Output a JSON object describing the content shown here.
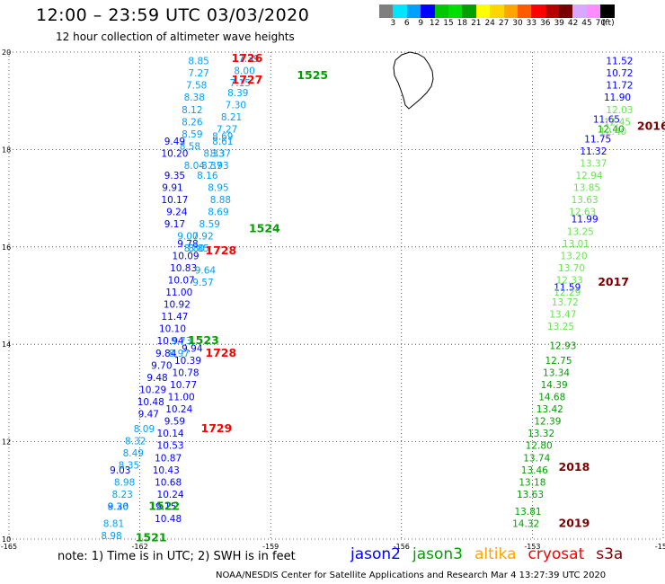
{
  "header": {
    "title": "12:00 – 23:59 UTC 03/03/2020",
    "subtitle": "12 hour collection of altimeter wave heights"
  },
  "colorbar": {
    "colors": [
      "#7f7f7f",
      "#00e5ff",
      "#00a0ff",
      "#0000ff",
      "#00c800",
      "#00e000",
      "#00a000",
      "#ffff00",
      "#ffd700",
      "#ffa500",
      "#ff5a00",
      "#ff0000",
      "#b40000",
      "#7a0000",
      "#d8a8ff",
      "#ff8cff",
      "#000000"
    ],
    "labels": [
      "3",
      "6",
      "9",
      "12",
      "15",
      "18",
      "21",
      "24",
      "27",
      "30",
      "33",
      "36",
      "39",
      "42",
      "45",
      "70",
      "(ft)"
    ]
  },
  "map": {
    "lon_ticks": [
      "-165",
      "-162",
      "-159",
      "-156",
      "-153",
      "-150"
    ],
    "lat_ticks": [
      "10",
      "12",
      "14",
      "16",
      "18",
      "20"
    ],
    "lon_range": [
      -165,
      -150
    ],
    "lat_range": [
      10,
      20
    ],
    "land": "big-island-hawaii-outline"
  },
  "legend": {
    "note": "note:  1) Time is in UTC;  2) SWH is in feet",
    "items": [
      {
        "name": "jason2",
        "color": "#0000ff"
      },
      {
        "name": "jason3",
        "color": "#00a000"
      },
      {
        "name": "altika",
        "color": "#ffa500"
      },
      {
        "name": "cryosat",
        "color": "#ff0000"
      },
      {
        "name": "s3a",
        "color": "#7a0000"
      }
    ]
  },
  "footer": "NOAA/NESDIS Center for Satellite Applications and Research    Mar  4 13:27:39 UTC 2020",
  "chart_data": {
    "type": "scatter",
    "ticks_x": [
      "-165",
      "-162",
      "-159",
      "-156",
      "-153",
      "-150"
    ],
    "ticks_y": [
      "10",
      "12",
      "14",
      "16",
      "18",
      "20"
    ],
    "xlim": [
      -165,
      -150
    ],
    "ylim": [
      10,
      20
    ],
    "time_labels": [
      {
        "text": "1726",
        "sat": "cryosat",
        "lon": -159.9,
        "lat": 19.8
      },
      {
        "text": "1727",
        "sat": "cryosat",
        "lon": -159.9,
        "lat": 19.35
      },
      {
        "text": "1525",
        "sat": "jason3",
        "lon": -158.4,
        "lat": 19.45
      },
      {
        "text": "1524",
        "sat": "jason3",
        "lon": -159.5,
        "lat": 16.3
      },
      {
        "text": "1728",
        "sat": "cryosat",
        "lon": -160.5,
        "lat": 15.85
      },
      {
        "text": "1523",
        "sat": "jason3",
        "lon": -160.9,
        "lat": 14.0
      },
      {
        "text": "1728",
        "sat": "cryosat",
        "lon": -160.5,
        "lat": 13.75
      },
      {
        "text": "1729",
        "sat": "cryosat",
        "lon": -160.6,
        "lat": 12.2
      },
      {
        "text": "1522",
        "sat": "jason3",
        "lon": -161.8,
        "lat": 10.6
      },
      {
        "text": "1521",
        "sat": "jason3",
        "lon": -162.1,
        "lat": 9.95
      },
      {
        "text": "2016",
        "sat": "s3a",
        "lon": -150.6,
        "lat": 18.4
      },
      {
        "text": "2017",
        "sat": "s3a",
        "lon": -151.5,
        "lat": 15.2
      },
      {
        "text": "2018",
        "sat": "s3a",
        "lon": -152.4,
        "lat": 11.4
      },
      {
        "text": "2019",
        "sat": "s3a",
        "lon": -152.4,
        "lat": 10.25
      }
    ],
    "series": [
      {
        "name": "jason2",
        "color": "#0000ff",
        "points": [
          [
            -151.0,
            19.75,
            "11.52"
          ],
          [
            -151.0,
            19.5,
            "10.72"
          ],
          [
            -151.0,
            19.25,
            "11.72"
          ],
          [
            -151.05,
            19.0,
            "11.90"
          ],
          [
            -151.3,
            18.55,
            "11.65"
          ],
          [
            -151.5,
            18.15,
            "11.75"
          ],
          [
            -151.6,
            17.9,
            "11.32"
          ],
          [
            -151.8,
            16.5,
            "11.99"
          ],
          [
            -152.2,
            15.1,
            "11.59"
          ],
          [
            -161.2,
            18.1,
            "9.49"
          ],
          [
            -161.2,
            17.85,
            "10.20"
          ],
          [
            -161.2,
            17.4,
            "9.35"
          ],
          [
            -161.25,
            17.15,
            "9.91"
          ],
          [
            -161.2,
            16.9,
            "10.17"
          ],
          [
            -161.15,
            16.65,
            "9.24"
          ],
          [
            -161.2,
            16.4,
            "9.17"
          ],
          [
            -160.9,
            16.0,
            "9.78"
          ],
          [
            -160.95,
            15.75,
            "10.09"
          ],
          [
            -161.0,
            15.5,
            "10.83"
          ],
          [
            -161.05,
            15.25,
            "10.07"
          ],
          [
            -161.1,
            15.0,
            "11.00"
          ],
          [
            -161.15,
            14.75,
            "10.92"
          ],
          [
            -161.2,
            14.5,
            "11.47"
          ],
          [
            -161.25,
            14.25,
            "10.10"
          ],
          [
            -161.3,
            14.0,
            "10.94"
          ],
          [
            -161.4,
            13.75,
            "9.84"
          ],
          [
            -161.5,
            13.5,
            "9.70"
          ],
          [
            -161.6,
            13.25,
            "9.48"
          ],
          [
            -161.7,
            13.0,
            "10.29"
          ],
          [
            -161.75,
            12.75,
            "10.48"
          ],
          [
            -161.8,
            12.5,
            "9.47"
          ],
          [
            -160.8,
            13.85,
            "9.94"
          ],
          [
            -160.9,
            13.6,
            "10.39"
          ],
          [
            -160.95,
            13.35,
            "10.78"
          ],
          [
            -161.0,
            13.1,
            "10.77"
          ],
          [
            -161.05,
            12.85,
            "11.00"
          ],
          [
            -161.1,
            12.6,
            "10.24"
          ],
          [
            -161.2,
            12.35,
            "9.59"
          ],
          [
            -161.3,
            12.1,
            "10.14"
          ],
          [
            -161.3,
            11.85,
            "10.53"
          ],
          [
            -161.35,
            11.6,
            "10.87"
          ],
          [
            -161.4,
            11.35,
            "10.43"
          ],
          [
            -161.35,
            11.1,
            "10.68"
          ],
          [
            -161.3,
            10.85,
            "10.24"
          ],
          [
            -161.4,
            10.6,
            "9.15"
          ],
          [
            -161.35,
            10.35,
            "10.48"
          ],
          [
            -162.45,
            11.35,
            "9.03"
          ],
          [
            -162.5,
            10.6,
            "9.30"
          ]
        ]
      },
      {
        "name": "jason2-light",
        "color": "#00a0ff",
        "points": [
          [
            -160.65,
            19.75,
            "8.85"
          ],
          [
            -160.65,
            19.5,
            "7.27"
          ],
          [
            -160.7,
            19.25,
            "7.58"
          ],
          [
            -160.75,
            19.0,
            "8.38"
          ],
          [
            -160.8,
            18.75,
            "8.12"
          ],
          [
            -160.8,
            18.5,
            "8.26"
          ],
          [
            -160.8,
            18.25,
            "8.59"
          ],
          [
            -160.85,
            18.0,
            "8.58"
          ],
          [
            -160.75,
            17.6,
            "8.04"
          ],
          [
            -160.45,
            17.4,
            "8.16"
          ],
          [
            -160.2,
            17.15,
            "8.95"
          ],
          [
            -160.15,
            16.9,
            "8.88"
          ],
          [
            -160.2,
            16.65,
            "8.69"
          ],
          [
            -160.4,
            16.4,
            "8.59"
          ],
          [
            -160.55,
            16.15,
            "7.92"
          ],
          [
            -160.75,
            15.9,
            "8.80"
          ],
          [
            -159.5,
            19.8,
            "7.39"
          ],
          [
            -159.6,
            19.55,
            "8.00"
          ],
          [
            -159.7,
            19.3,
            "7.15"
          ],
          [
            -159.75,
            19.1,
            "8.39"
          ],
          [
            -159.8,
            18.85,
            "7.30"
          ],
          [
            -159.9,
            18.6,
            "8.21"
          ],
          [
            -160.0,
            18.35,
            "7.27"
          ],
          [
            -160.1,
            18.1,
            "8.61"
          ],
          [
            -160.15,
            17.85,
            "8.37"
          ],
          [
            -160.2,
            17.6,
            "7.93"
          ],
          [
            -160.1,
            18.2,
            "8.69"
          ],
          [
            -160.3,
            17.85,
            "8.33"
          ],
          [
            -160.35,
            17.6,
            "8.37"
          ],
          [
            -160.9,
            16.15,
            "9.00"
          ],
          [
            -160.65,
            15.9,
            "8.85"
          ],
          [
            -160.5,
            15.45,
            "9.64"
          ],
          [
            -160.55,
            15.2,
            "9.57"
          ],
          [
            -161.05,
            14.0,
            "9.73"
          ],
          [
            -161.1,
            13.75,
            "8.97"
          ],
          [
            -161.9,
            12.2,
            "8.09"
          ],
          [
            -162.1,
            11.95,
            "8.32"
          ],
          [
            -162.15,
            11.7,
            "8.49"
          ],
          [
            -162.25,
            11.45,
            "8.35"
          ],
          [
            -162.35,
            11.1,
            "8.98"
          ],
          [
            -162.4,
            10.85,
            "8.23"
          ],
          [
            -162.5,
            10.6,
            "8.26"
          ],
          [
            -162.6,
            10.25,
            "8.81"
          ],
          [
            -162.65,
            10.0,
            "8.98"
          ]
        ]
      },
      {
        "name": "jason3",
        "color": "#00a000",
        "points": [
          [
            -151.2,
            18.35,
            "12.40"
          ],
          [
            -152.3,
            13.9,
            "12.93"
          ],
          [
            -152.4,
            13.6,
            "12.75"
          ],
          [
            -152.45,
            13.35,
            "13.34"
          ],
          [
            -152.5,
            13.1,
            "14.39"
          ],
          [
            -152.55,
            12.85,
            "14.68"
          ],
          [
            -152.6,
            12.6,
            "13.42"
          ],
          [
            -152.65,
            12.35,
            "12.39"
          ],
          [
            -152.8,
            12.1,
            "13.32"
          ],
          [
            -152.85,
            11.85,
            "12.80"
          ],
          [
            -152.9,
            11.6,
            "13.74"
          ],
          [
            -152.95,
            11.35,
            "13.46"
          ],
          [
            -153.0,
            11.1,
            "13.18"
          ],
          [
            -153.05,
            10.85,
            "13.63"
          ],
          [
            -153.1,
            10.5,
            "13.81"
          ],
          [
            -153.15,
            10.25,
            "14.32"
          ]
        ]
      },
      {
        "name": "jason3-light",
        "color": "#66e64c",
        "points": [
          [
            -151.0,
            18.75,
            "12.03"
          ],
          [
            -151.05,
            18.5,
            "12.45"
          ],
          [
            -151.15,
            18.3,
            "12.40"
          ],
          [
            -151.6,
            17.65,
            "13.37"
          ],
          [
            -151.7,
            17.4,
            "12.94"
          ],
          [
            -151.75,
            17.15,
            "13.85"
          ],
          [
            -151.8,
            16.9,
            "13.63"
          ],
          [
            -151.85,
            16.65,
            "12.63"
          ],
          [
            -151.9,
            16.25,
            "13.25"
          ],
          [
            -152.0,
            16.0,
            "13.01"
          ],
          [
            -152.05,
            15.75,
            "13.20"
          ],
          [
            -152.1,
            15.5,
            "13.70"
          ],
          [
            -152.15,
            15.25,
            "12.33"
          ],
          [
            -152.2,
            15.0,
            "12.29"
          ],
          [
            -152.25,
            14.8,
            "13.72"
          ],
          [
            -152.3,
            14.55,
            "13.47"
          ],
          [
            -152.35,
            14.3,
            "13.25"
          ]
        ]
      }
    ]
  }
}
